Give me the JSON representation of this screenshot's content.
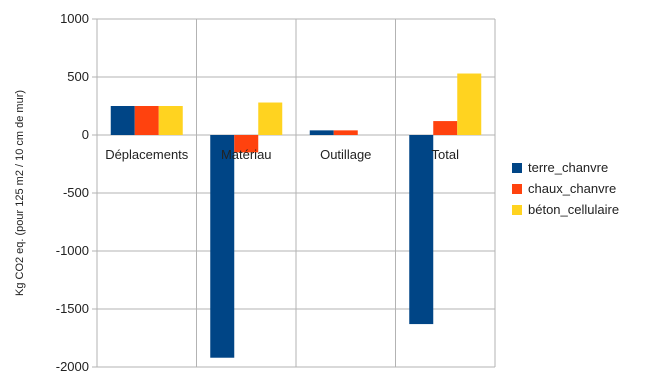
{
  "chart_data": {
    "type": "bar",
    "title": "",
    "xlabel": "",
    "ylabel": "Kg CO2 eq. (pour 125 m2 / 10 cm de mur)",
    "categories": [
      "Déplacements",
      "Matériau",
      "Outillage",
      "Total"
    ],
    "ylim": [
      -2000,
      1000
    ],
    "yticks": [
      -2000,
      -1500,
      -1000,
      -500,
      0,
      500,
      1000
    ],
    "grid": true,
    "legend_position": "right",
    "series": [
      {
        "name": "terre_chanvre",
        "color": "#004586",
        "values": [
          250,
          -1920,
          40,
          -1630
        ]
      },
      {
        "name": "chaux_chanvre",
        "color": "#ff420e",
        "values": [
          250,
          -150,
          40,
          120
        ]
      },
      {
        "name": "béton_cellulaire",
        "color": "#ffd320",
        "values": [
          250,
          280,
          0,
          530
        ]
      }
    ]
  }
}
